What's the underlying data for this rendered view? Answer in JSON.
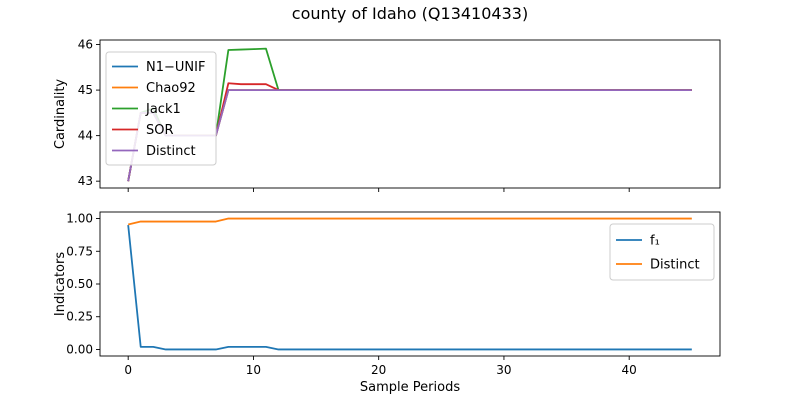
{
  "title": "county of Idaho (Q13410433)",
  "chart_data": [
    {
      "type": "line",
      "ylabel": "Cardinality",
      "xlabel": "",
      "xlim": [
        -2.25,
        47.25
      ],
      "ylim": [
        42.85,
        46.1
      ],
      "xticks": [
        0,
        10,
        20,
        30,
        40
      ],
      "yticks": [
        43,
        44,
        45,
        46
      ],
      "show_xtick_labels": false,
      "grid": false,
      "legend_position": "upper-left",
      "series": [
        {
          "name": "N1−UNIF",
          "color": "#1f77b4",
          "x": [
            0,
            1,
            2,
            3,
            4,
            5,
            6,
            7,
            8,
            9,
            10,
            11,
            12,
            45
          ],
          "y": [
            43,
            44.5,
            44.5,
            44,
            44,
            44,
            44,
            44,
            45,
            45,
            45,
            45,
            45,
            45
          ]
        },
        {
          "name": "Chao92",
          "color": "#ff7f0e",
          "x": [
            0,
            1,
            2,
            3,
            4,
            5,
            6,
            7,
            8,
            9,
            10,
            11,
            12,
            45
          ],
          "y": [
            43,
            44.5,
            44.5,
            44,
            44,
            44,
            44,
            44,
            45,
            45,
            45,
            45,
            45,
            45
          ]
        },
        {
          "name": "Jack1",
          "color": "#2ca02c",
          "x": [
            0,
            1,
            2,
            3,
            4,
            5,
            6,
            7,
            8,
            9,
            10,
            11,
            12,
            45
          ],
          "y": [
            43,
            44.5,
            44.6,
            44,
            44,
            44,
            44,
            44,
            45.88,
            45.89,
            45.9,
            45.91,
            45,
            45
          ]
        },
        {
          "name": "SOR",
          "color": "#d62728",
          "x": [
            0,
            1,
            2,
            3,
            4,
            5,
            6,
            7,
            8,
            9,
            10,
            11,
            12,
            45
          ],
          "y": [
            43,
            44.5,
            44.5,
            44,
            44,
            44,
            44,
            44,
            45.15,
            45.13,
            45.13,
            45.13,
            45,
            45
          ]
        },
        {
          "name": "Distinct",
          "color": "#9467bd",
          "x": [
            0,
            1,
            2,
            3,
            4,
            5,
            6,
            7,
            8,
            9,
            10,
            11,
            12,
            45
          ],
          "y": [
            43,
            44.5,
            44.5,
            44,
            44,
            44,
            44,
            44,
            45,
            45,
            45,
            45,
            45,
            45
          ]
        }
      ]
    },
    {
      "type": "line",
      "ylabel": "Indicators",
      "xlabel": "Sample Periods",
      "xlim": [
        -2.25,
        47.25
      ],
      "ylim": [
        -0.05,
        1.05
      ],
      "xticks": [
        0,
        10,
        20,
        30,
        40
      ],
      "yticks": [
        0.0,
        0.25,
        0.5,
        0.75,
        1.0
      ],
      "ytick_labels": [
        "0.00",
        "0.25",
        "0.50",
        "0.75",
        "1.00"
      ],
      "show_xtick_labels": true,
      "grid": false,
      "legend_position": "upper-right",
      "series": [
        {
          "name": "f₁",
          "color": "#1f77b4",
          "x": [
            0,
            1,
            2,
            3,
            4,
            5,
            6,
            7,
            8,
            9,
            10,
            11,
            12,
            45
          ],
          "y": [
            0.95,
            0.02,
            0.02,
            0,
            0,
            0,
            0,
            0,
            0.02,
            0.02,
            0.02,
            0.02,
            0,
            0
          ]
        },
        {
          "name": "Distinct",
          "color": "#ff7f0e",
          "x": [
            0,
            1,
            2,
            3,
            4,
            5,
            6,
            7,
            8,
            9,
            10,
            11,
            12,
            45
          ],
          "y": [
            0.955,
            0.977,
            0.977,
            0.977,
            0.977,
            0.977,
            0.977,
            0.977,
            1,
            1,
            1,
            1,
            1,
            1
          ]
        }
      ]
    }
  ]
}
